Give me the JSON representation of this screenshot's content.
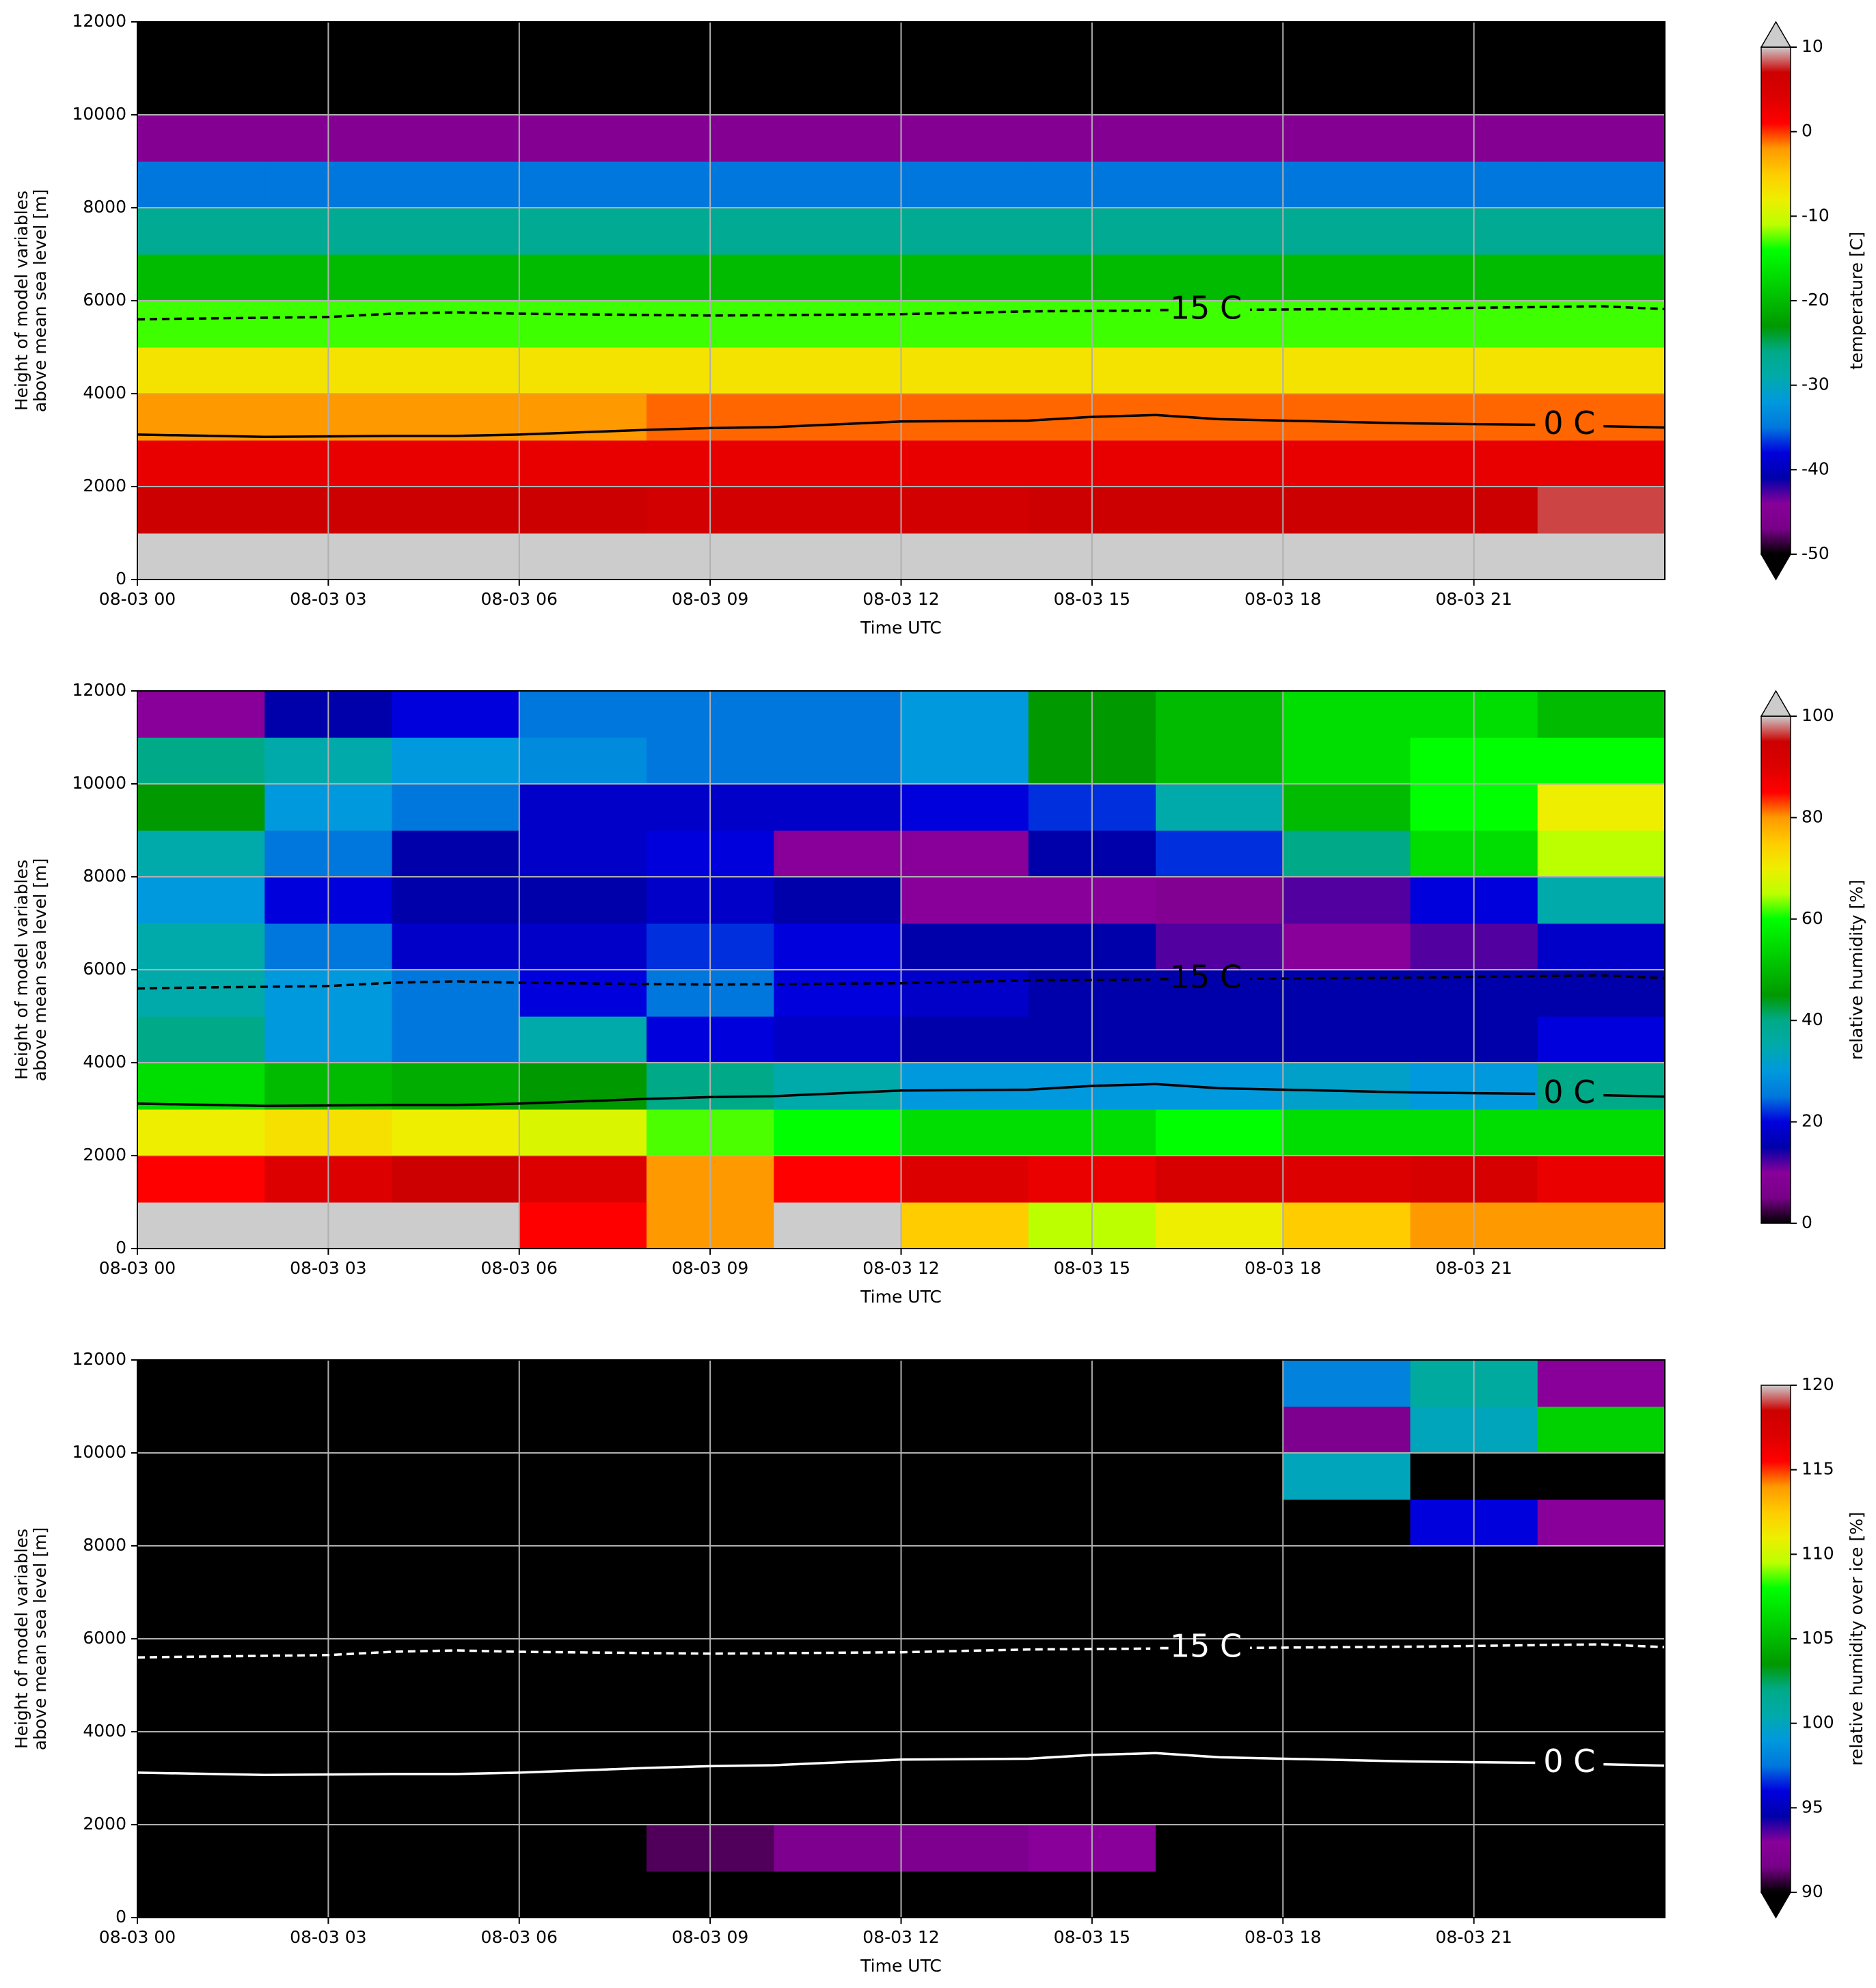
{
  "style": {
    "colormap": [
      "#000000",
      "#780088",
      "#880099",
      "#0000aa",
      "#0000dd",
      "#0077dd",
      "#0099dd",
      "#00aaaa",
      "#00aa88",
      "#009900",
      "#00bb00",
      "#00dd00",
      "#00ff00",
      "#bbff00",
      "#eeee00",
      "#ffcc00",
      "#ff9900",
      "#ff0000",
      "#dd0000",
      "#cc0000",
      "#cccccc"
    ],
    "grid_color": "#b0b0b0"
  },
  "chart_data": [
    {
      "type": "heatmap",
      "xlabel": "Time UTC",
      "ylabel": [
        "Height of model variables",
        "above mean sea level [m]"
      ],
      "xlim": [
        0,
        24
      ],
      "ylim": [
        0,
        12000
      ],
      "grid": true,
      "xticks": [
        {
          "value": 0,
          "label": "08-03 00"
        },
        {
          "value": 3,
          "label": "08-03 03"
        },
        {
          "value": 6,
          "label": "08-03 06"
        },
        {
          "value": 9,
          "label": "08-03 09"
        },
        {
          "value": 12,
          "label": "08-03 12"
        },
        {
          "value": 15,
          "label": "08-03 15"
        },
        {
          "value": 18,
          "label": "08-03 18"
        },
        {
          "value": 21,
          "label": "08-03 21"
        }
      ],
      "yticks": [
        0,
        2000,
        4000,
        6000,
        8000,
        10000,
        12000
      ],
      "x": [
        1,
        3,
        5,
        7,
        9,
        11,
        13,
        15,
        17,
        19,
        21,
        23
      ],
      "y": [
        500,
        1500,
        2500,
        3500,
        4500,
        5500,
        6500,
        7500,
        8500,
        9500,
        10500,
        11500
      ],
      "z": [
        [
          12,
          12,
          12,
          12,
          12,
          12,
          12,
          12,
          12,
          12,
          12,
          12
        ],
        [
          7,
          7,
          7,
          7,
          6,
          6,
          6,
          7,
          7,
          7,
          7,
          8
        ],
        [
          3,
          3,
          3,
          3,
          3,
          3,
          3,
          3,
          3,
          3,
          3,
          3
        ],
        [
          -2,
          -2,
          -2,
          -2,
          -1,
          -1,
          -1,
          -1,
          -1,
          -1,
          -1,
          -1
        ],
        [
          -7,
          -7,
          -7,
          -7,
          -7,
          -7,
          -7,
          -7,
          -7,
          -7,
          -7,
          -7
        ],
        [
          -13,
          -13,
          -13,
          -13,
          -13,
          -13,
          -13,
          -13,
          -13,
          -13,
          -13,
          -13
        ],
        [
          -20,
          -20,
          -20,
          -20,
          -20,
          -20,
          -20,
          -20,
          -20,
          -20,
          -20,
          -20
        ],
        [
          -27,
          -27,
          -27,
          -27,
          -27,
          -27,
          -27,
          -27,
          -27,
          -27,
          -27,
          -27
        ],
        [
          -35,
          -35,
          -35,
          -35,
          -35,
          -35,
          -35,
          -35,
          -35,
          -35,
          -35,
          -35
        ],
        [
          -45,
          -45,
          -45,
          -45,
          -45,
          -45,
          -45,
          -45,
          -45,
          -45,
          -45,
          -45
        ],
        [
          -55,
          -55,
          -55,
          -55,
          -55,
          -55,
          -55,
          -55,
          -55,
          -55,
          -55,
          -55
        ],
        [
          -55,
          -55,
          -55,
          -55,
          -55,
          -55,
          -55,
          -55,
          -55,
          -55,
          -55,
          -55
        ]
      ],
      "colorbar": {
        "label": "temperature [C]",
        "lim": [
          -50,
          10
        ],
        "ticks": [
          -50,
          -40,
          -30,
          -20,
          -10,
          0,
          10
        ],
        "over_color": "#cccccc",
        "under_color": "#000000"
      },
      "contours": [
        {
          "label": "0 C",
          "color": "#000000",
          "dashed": false,
          "x": [
            0,
            2,
            4,
            5,
            6,
            8,
            9,
            10,
            12,
            14,
            15,
            16,
            17,
            20,
            22,
            24
          ],
          "y": [
            3120,
            3070,
            3090,
            3090,
            3120,
            3220,
            3260,
            3280,
            3400,
            3420,
            3500,
            3540,
            3450,
            3360,
            3330,
            3270
          ]
        },
        {
          "label": "-15 C",
          "color": "#000000",
          "dashed": true,
          "x": [
            0,
            3,
            4,
            5,
            6,
            9,
            12,
            14,
            15,
            17,
            20,
            23,
            24
          ],
          "y": [
            5600,
            5650,
            5720,
            5750,
            5720,
            5680,
            5710,
            5770,
            5780,
            5800,
            5830,
            5880,
            5820
          ]
        }
      ]
    },
    {
      "type": "heatmap",
      "xlabel": "Time UTC",
      "ylabel": [
        "Height of model variables",
        "above mean sea level [m]"
      ],
      "xlim": [
        0,
        24
      ],
      "ylim": [
        0,
        12000
      ],
      "grid": true,
      "xticks": [
        {
          "value": 0,
          "label": "08-03 00"
        },
        {
          "value": 3,
          "label": "08-03 03"
        },
        {
          "value": 6,
          "label": "08-03 06"
        },
        {
          "value": 9,
          "label": "08-03 09"
        },
        {
          "value": 12,
          "label": "08-03 12"
        },
        {
          "value": 15,
          "label": "08-03 15"
        },
        {
          "value": 18,
          "label": "08-03 18"
        },
        {
          "value": 21,
          "label": "08-03 21"
        }
      ],
      "yticks": [
        0,
        2000,
        4000,
        6000,
        8000,
        10000,
        12000
      ],
      "x": [
        1,
        3,
        5,
        7,
        9,
        11,
        13,
        15,
        17,
        19,
        21,
        23
      ],
      "y": [
        500,
        1500,
        2500,
        3500,
        4500,
        5500,
        6500,
        7500,
        8500,
        9500,
        10500,
        11500
      ],
      "z": [
        [
          100,
          100,
          100,
          85,
          80,
          100,
          75,
          65,
          70,
          75,
          80,
          80
        ],
        [
          85,
          90,
          95,
          90,
          80,
          85,
          90,
          88,
          92,
          90,
          92,
          88
        ],
        [
          70,
          72,
          70,
          68,
          62,
          60,
          55,
          55,
          60,
          55,
          55,
          55
        ],
        [
          55,
          50,
          48,
          45,
          40,
          35,
          30,
          30,
          30,
          32,
          30,
          40
        ],
        [
          40,
          30,
          25,
          35,
          20,
          18,
          15,
          15,
          15,
          15,
          15,
          20
        ],
        [
          35,
          30,
          25,
          20,
          25,
          20,
          18,
          15,
          15,
          15,
          15,
          15
        ],
        [
          35,
          25,
          18,
          18,
          22,
          20,
          15,
          15,
          12,
          10,
          12,
          18
        ],
        [
          30,
          20,
          15,
          15,
          18,
          15,
          10,
          10,
          8,
          12,
          20,
          35
        ],
        [
          35,
          25,
          15,
          18,
          20,
          10,
          10,
          15,
          22,
          40,
          55,
          65
        ],
        [
          45,
          30,
          25,
          18,
          18,
          18,
          20,
          22,
          35,
          50,
          60,
          70
        ],
        [
          40,
          35,
          30,
          28,
          25,
          25,
          30,
          45,
          50,
          55,
          60,
          60
        ],
        [
          10,
          15,
          20,
          25,
          25,
          25,
          30,
          45,
          50,
          55,
          55,
          50
        ]
      ],
      "colorbar": {
        "label": "relative humidity [%]",
        "lim": [
          0,
          100
        ],
        "ticks": [
          0,
          20,
          40,
          60,
          80,
          100
        ],
        "over_color": "#cccccc"
      },
      "contours": [
        {
          "label": "0 C",
          "color": "#000000",
          "dashed": false,
          "x": [
            0,
            2,
            4,
            5,
            6,
            8,
            9,
            10,
            12,
            14,
            15,
            16,
            17,
            20,
            22,
            24
          ],
          "y": [
            3120,
            3070,
            3090,
            3090,
            3120,
            3220,
            3260,
            3280,
            3400,
            3420,
            3500,
            3540,
            3450,
            3360,
            3330,
            3270
          ]
        },
        {
          "label": "-15 C",
          "color": "#000000",
          "dashed": true,
          "x": [
            0,
            3,
            4,
            5,
            6,
            9,
            12,
            14,
            15,
            17,
            20,
            23,
            24
          ],
          "y": [
            5600,
            5650,
            5720,
            5750,
            5720,
            5680,
            5710,
            5770,
            5780,
            5800,
            5830,
            5880,
            5820
          ]
        }
      ]
    },
    {
      "type": "heatmap",
      "xlabel": "Time UTC",
      "ylabel": [
        "Height of model variables",
        "above mean sea level [m]"
      ],
      "xlim": [
        0,
        24
      ],
      "ylim": [
        0,
        12000
      ],
      "grid": true,
      "xticks": [
        {
          "value": 0,
          "label": "08-03 00"
        },
        {
          "value": 3,
          "label": "08-03 03"
        },
        {
          "value": 6,
          "label": "08-03 06"
        },
        {
          "value": 9,
          "label": "08-03 09"
        },
        {
          "value": 12,
          "label": "08-03 12"
        },
        {
          "value": 15,
          "label": "08-03 15"
        },
        {
          "value": 18,
          "label": "08-03 18"
        },
        {
          "value": 21,
          "label": "08-03 21"
        }
      ],
      "yticks": [
        0,
        2000,
        4000,
        6000,
        8000,
        10000,
        12000
      ],
      "x": [
        1,
        3,
        5,
        7,
        9,
        11,
        13,
        15,
        17,
        19,
        21,
        23
      ],
      "y": [
        500,
        1500,
        2500,
        3500,
        4500,
        5500,
        6500,
        7500,
        8500,
        9500,
        10500,
        11500
      ],
      "z": [
        [
          80,
          80,
          80,
          80,
          80,
          80,
          80,
          80,
          80,
          80,
          80,
          80
        ],
        [
          80,
          80,
          80,
          80,
          91,
          92,
          92,
          93,
          80,
          80,
          80,
          80
        ],
        [
          80,
          80,
          80,
          80,
          80,
          80,
          80,
          80,
          80,
          80,
          80,
          80
        ],
        [
          80,
          80,
          80,
          80,
          80,
          80,
          80,
          80,
          80,
          80,
          80,
          80
        ],
        [
          80,
          80,
          80,
          80,
          80,
          80,
          80,
          80,
          80,
          80,
          80,
          80
        ],
        [
          80,
          80,
          80,
          80,
          80,
          80,
          80,
          80,
          80,
          80,
          80,
          80
        ],
        [
          80,
          80,
          80,
          80,
          80,
          80,
          80,
          80,
          80,
          80,
          80,
          80
        ],
        [
          80,
          80,
          80,
          80,
          80,
          80,
          80,
          80,
          80,
          80,
          80,
          80
        ],
        [
          80,
          80,
          80,
          80,
          80,
          80,
          80,
          80,
          80,
          80,
          96,
          93
        ],
        [
          80,
          80,
          80,
          80,
          80,
          80,
          80,
          80,
          80,
          100,
          80,
          80
        ],
        [
          80,
          80,
          80,
          80,
          80,
          80,
          80,
          80,
          80,
          92,
          100,
          106
        ],
        [
          80,
          80,
          80,
          80,
          80,
          80,
          80,
          80,
          80,
          98,
          101,
          93
        ]
      ],
      "colorbar": {
        "label": "relative humidity over ice [%]",
        "lim": [
          90,
          120
        ],
        "ticks": [
          90,
          95,
          100,
          105,
          110,
          115,
          120
        ],
        "under_color": "#000000"
      },
      "contours": [
        {
          "label": "0 C",
          "color": "#ffffff",
          "dashed": false,
          "x": [
            0,
            2,
            4,
            5,
            6,
            8,
            9,
            10,
            12,
            14,
            15,
            16,
            17,
            20,
            22,
            24
          ],
          "y": [
            3120,
            3070,
            3090,
            3090,
            3120,
            3220,
            3260,
            3280,
            3400,
            3420,
            3500,
            3540,
            3450,
            3360,
            3330,
            3270
          ]
        },
        {
          "label": "-15 C",
          "color": "#ffffff",
          "dashed": true,
          "x": [
            0,
            3,
            4,
            5,
            6,
            9,
            12,
            14,
            15,
            17,
            20,
            23,
            24
          ],
          "y": [
            5600,
            5650,
            5720,
            5750,
            5720,
            5680,
            5710,
            5770,
            5780,
            5800,
            5830,
            5880,
            5820
          ]
        }
      ]
    }
  ]
}
